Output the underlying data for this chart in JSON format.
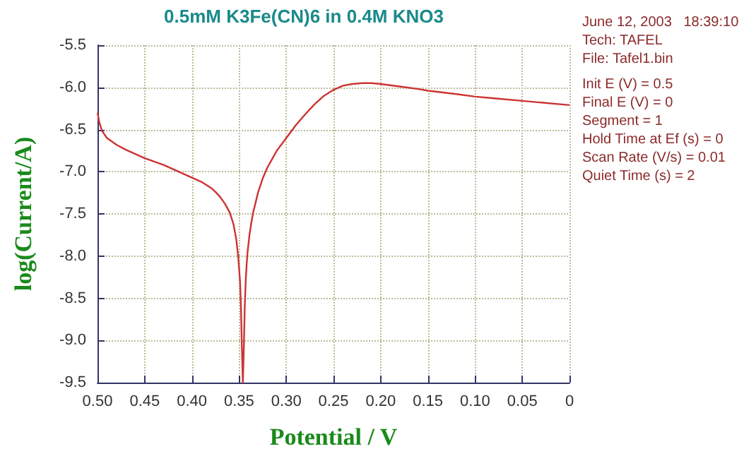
{
  "chart_data": {
    "type": "line",
    "title": "0.5mM K3Fe(CN)6 in 0.4M KNO3",
    "xlabel": "Potential / V",
    "ylabel": "log(Current/A)",
    "annotations": [
      "June 12, 2003   18:39:10",
      "Tech: TAFEL",
      "File: Tafel1.bin",
      "Init E (V) = 0.5",
      "Final E (V) = 0",
      "Segment = 1",
      "Hold Time at Ef (s) = 0",
      "Scan Rate (V/s) = 0.01",
      "Quiet Time (s) = 2"
    ],
    "series": [
      {
        "color": "#cc3333",
        "x": [
          0.5,
          0.498,
          0.495,
          0.49,
          0.48,
          0.47,
          0.46,
          0.45,
          0.44,
          0.43,
          0.42,
          0.41,
          0.4,
          0.39,
          0.38,
          0.375,
          0.37,
          0.365,
          0.36,
          0.356,
          0.353,
          0.351,
          0.349,
          0.348,
          0.347,
          0.346,
          0.345,
          0.344,
          0.343,
          0.342,
          0.341,
          0.339,
          0.337,
          0.335,
          0.33,
          0.325,
          0.32,
          0.31,
          0.3,
          0.29,
          0.28,
          0.27,
          0.26,
          0.25,
          0.24,
          0.23,
          0.22,
          0.21,
          0.2,
          0.18,
          0.16,
          0.15,
          0.12,
          0.1,
          0.08,
          0.05,
          0.03,
          0
        ],
        "values": [
          -6.3,
          -6.42,
          -6.52,
          -6.6,
          -6.68,
          -6.74,
          -6.79,
          -6.84,
          -6.88,
          -6.92,
          -6.97,
          -7.02,
          -7.07,
          -7.12,
          -7.19,
          -7.24,
          -7.3,
          -7.38,
          -7.48,
          -7.62,
          -7.8,
          -8.0,
          -8.3,
          -8.6,
          -9.1,
          -9.5,
          -9.1,
          -8.6,
          -8.3,
          -8.1,
          -7.95,
          -7.75,
          -7.6,
          -7.48,
          -7.25,
          -7.08,
          -6.95,
          -6.75,
          -6.6,
          -6.45,
          -6.32,
          -6.2,
          -6.1,
          -6.03,
          -5.98,
          -5.96,
          -5.95,
          -5.95,
          -5.96,
          -5.99,
          -6.02,
          -6.04,
          -6.08,
          -6.11,
          -6.13,
          -6.16,
          -6.18,
          -6.21
        ]
      }
    ],
    "xlim": [
      0.5,
      0
    ],
    "xticks": [
      {
        "value": 0.5,
        "label": "0.50"
      },
      0.45,
      {
        "value": 0.4,
        "label": "0.40"
      },
      0.35,
      {
        "value": 0.3,
        "label": "0.30"
      },
      0.25,
      {
        "value": 0.2,
        "label": "0.20"
      },
      0.15,
      {
        "value": 0.1,
        "label": "0.10"
      },
      0.05,
      0
    ],
    "ylim": [
      -9.5,
      -5.5
    ],
    "yticks": [
      -9.5,
      {
        "value": -9,
        "label": "-9.0"
      },
      -8.5,
      {
        "value": -8,
        "label": "-8.0"
      },
      -7.5,
      {
        "value": -7,
        "label": "-7.0"
      },
      -6.5,
      {
        "value": -6,
        "label": "-6.0"
      },
      -5.5
    ],
    "grid": true,
    "marker": "none",
    "line_style": "solid"
  }
}
